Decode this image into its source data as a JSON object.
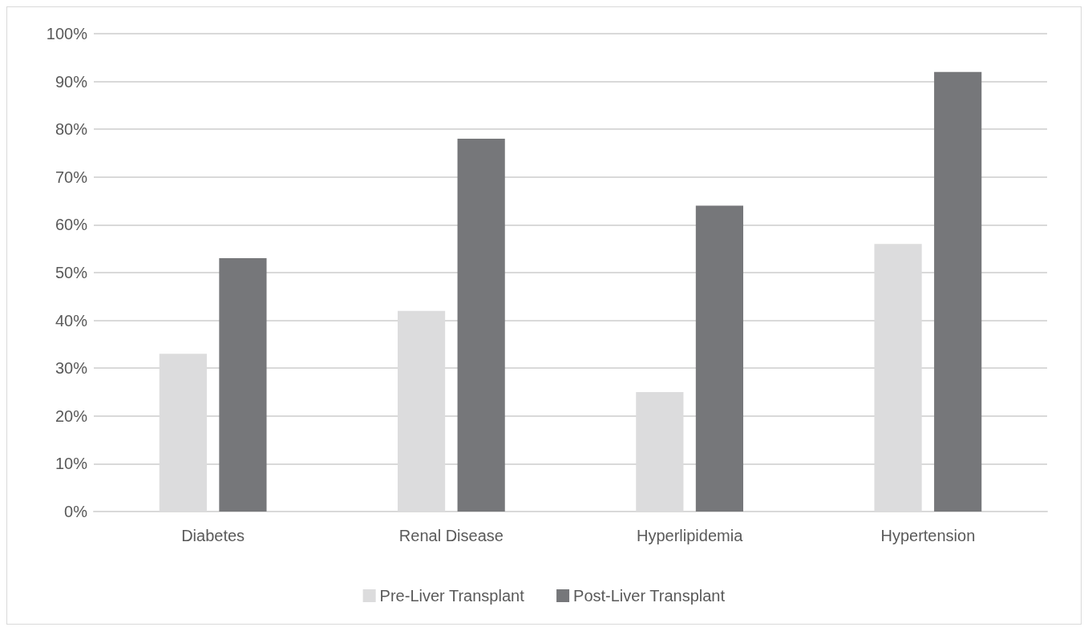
{
  "chart_data": {
    "type": "bar",
    "categories": [
      "Diabetes",
      "Renal Disease",
      "Hyperlipidemia",
      "Hypertension"
    ],
    "series": [
      {
        "name": "Pre-Liver Transplant",
        "color": "#dcdcdd",
        "values": [
          33,
          42,
          25,
          56
        ]
      },
      {
        "name": "Post-Liver Transplant",
        "color": "#76777a",
        "values": [
          53,
          78,
          64,
          92
        ]
      }
    ],
    "ylim": [
      0,
      100
    ],
    "yticks": [
      {
        "value": 0,
        "label": "0%"
      },
      {
        "value": 10,
        "label": "10%"
      },
      {
        "value": 20,
        "label": "20%"
      },
      {
        "value": 30,
        "label": "30%"
      },
      {
        "value": 40,
        "label": "40%"
      },
      {
        "value": 50,
        "label": "50%"
      },
      {
        "value": 60,
        "label": "60%"
      },
      {
        "value": 70,
        "label": "70%"
      },
      {
        "value": 80,
        "label": "80%"
      },
      {
        "value": 90,
        "label": "90%"
      },
      {
        "value": 100,
        "label": "100%"
      }
    ],
    "grid": "y",
    "legend": "bottom"
  }
}
